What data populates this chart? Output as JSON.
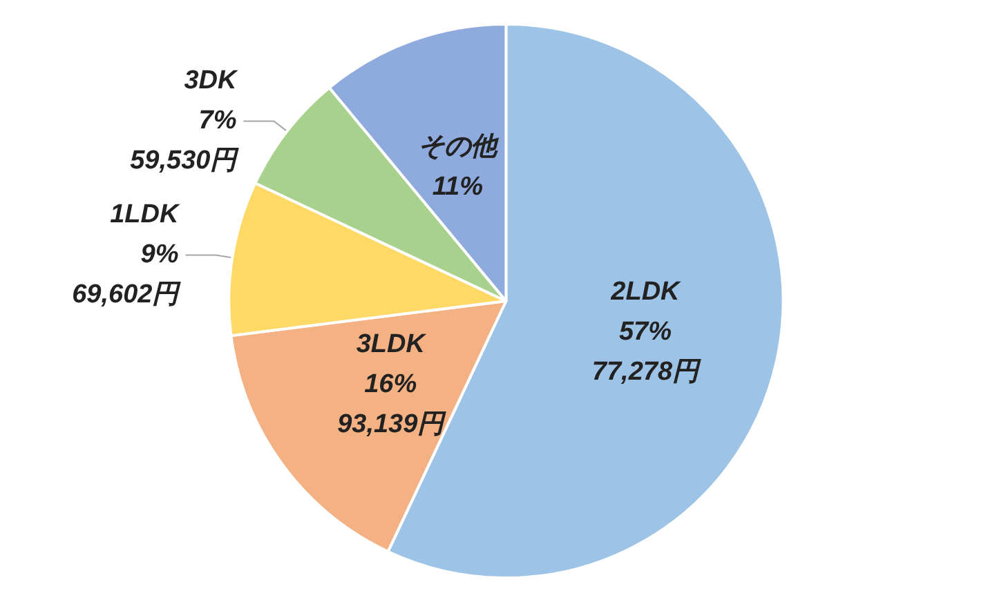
{
  "chart_data": {
    "type": "pie",
    "categories": [
      "2LDK",
      "3LDK",
      "1LDK",
      "3DK",
      "その他"
    ],
    "values": [
      57,
      16,
      9,
      7,
      11
    ],
    "colors": [
      "#9dc3e6",
      "#f4b183",
      "#ffd966",
      "#a9d18e",
      "#8faadc"
    ],
    "value_labels": [
      "57%\n77,278円",
      "16%\n93,139円",
      "9%\n69,602円",
      "7%\n59,530円",
      "11%"
    ]
  }
}
